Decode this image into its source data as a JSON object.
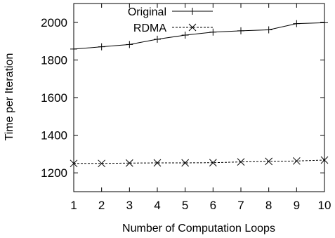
{
  "chart_data": {
    "type": "line",
    "title": "",
    "xlabel": "Number of Computation Loops",
    "ylabel": "Time per Iteration",
    "x": [
      1,
      2,
      3,
      4,
      5,
      6,
      7,
      8,
      9,
      10
    ],
    "xlim": [
      1,
      10
    ],
    "ylim": [
      1100,
      2100
    ],
    "xticks": [
      "1",
      "2",
      "3",
      "4",
      "5",
      "6",
      "7",
      "8",
      "9",
      "10"
    ],
    "yticks": [
      "1200",
      "1400",
      "1600",
      "1800",
      "2000"
    ],
    "grid": false,
    "legend_position": "top-left",
    "series": [
      {
        "name": "Original",
        "marker": "plus",
        "line_style": "solid",
        "color": "#000000",
        "values": [
          1858,
          1870,
          1882,
          1910,
          1932,
          1948,
          1955,
          1960,
          1993,
          1998
        ]
      },
      {
        "name": "RDMA",
        "marker": "cross",
        "line_style": "dashed",
        "color": "#000000",
        "values": [
          1250,
          1250,
          1252,
          1253,
          1253,
          1254,
          1258,
          1261,
          1263,
          1268
        ]
      }
    ]
  }
}
